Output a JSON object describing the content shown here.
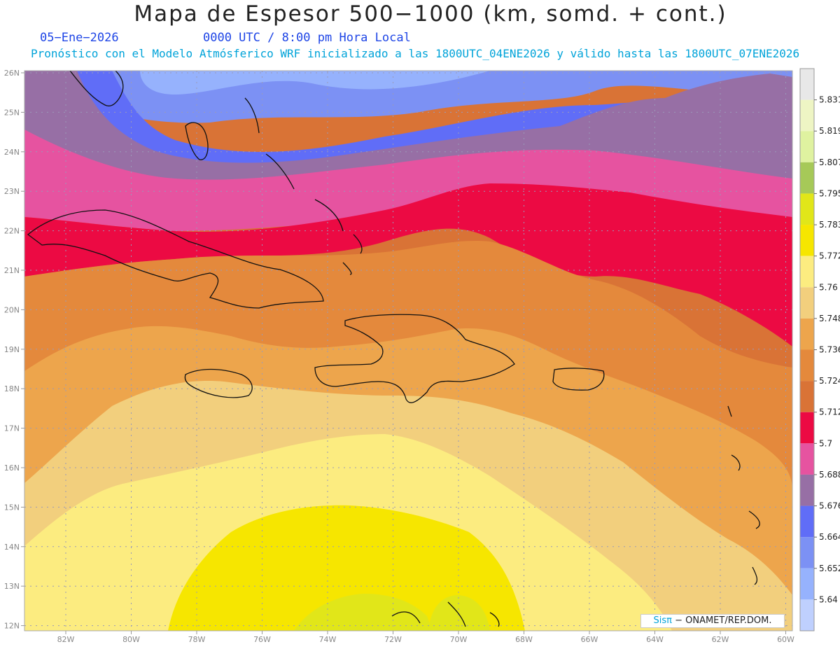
{
  "title": "Mapa de Espesor 500−1000 (km, somd. + cont.)",
  "date": "05−Ene−2026",
  "time": "0000 UTC / 8:00 pm Hora Local",
  "forecast_note": "Pronóstico con el Modelo Atmósferico WRF inicializado a las 1800UTC_04ENE2026 y válido hasta las  1800UTC_07ENE2026",
  "credit_brand": "Sisπ",
  "credit_rest": "− ONAMET/REP.DOM.",
  "lat_labels": [
    "26N",
    "25N",
    "24N",
    "23N",
    "22N",
    "21N",
    "20N",
    "19N",
    "18N",
    "17N",
    "16N",
    "15N",
    "14N",
    "13N",
    "12N"
  ],
  "lon_labels": [
    "82W",
    "80W",
    "78W",
    "76W",
    "74W",
    "72W",
    "70W",
    "68W",
    "66W",
    "64W",
    "62W",
    "60W"
  ],
  "colorbar": {
    "levels": [
      "5.831",
      "5.819",
      "5.807",
      "5.795",
      "5.783",
      "5.772",
      "5.76",
      "5.748",
      "5.736",
      "5.724",
      "5.712",
      "5.7",
      "5.688",
      "5.676",
      "5.664",
      "5.652",
      "5.64"
    ],
    "colors": [
      "#e8e8e8",
      "#eef5c4",
      "#dff2a0",
      "#a6c958",
      "#e1e619",
      "#f6e600",
      "#fcec80",
      "#f2cf7d",
      "#eda54c",
      "#e4893c",
      "#d97336",
      "#ec0a43",
      "#e653a0",
      "#976fa5",
      "#606df7",
      "#7c91f4",
      "#96b2fd",
      "#bfd0fe"
    ]
  }
}
